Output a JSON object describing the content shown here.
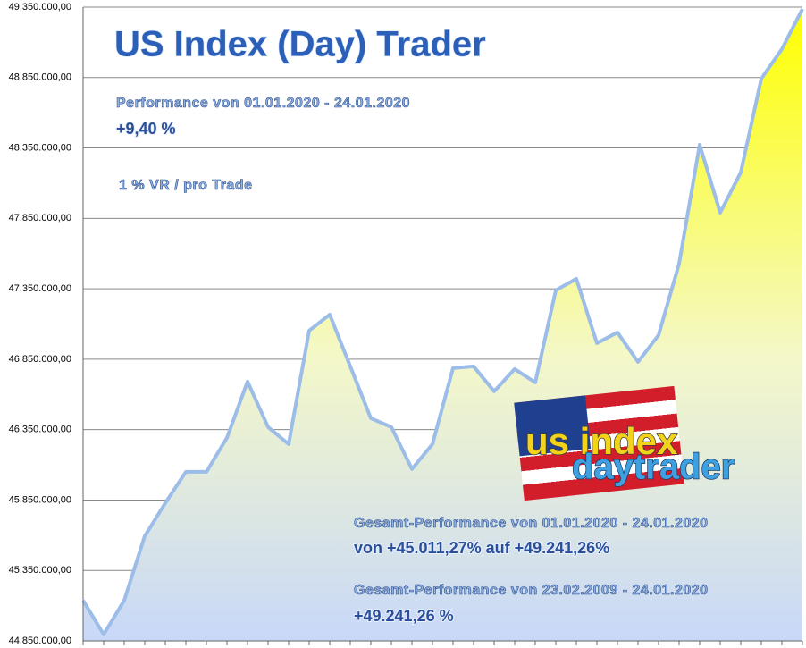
{
  "chart_data": {
    "type": "area",
    "title": "US Index (Day) Trader",
    "annotations": [
      "Performance  von  01.01.2020 - 24.01.2020",
      "+9,40 %",
      "1 % VR / pro Trade",
      "Gesamt-Performance  von  01.01.2020 - 24.01.2020",
      "von +45.011,27% auf  +49.241,26%",
      "Gesamt-Performance  von  23.02.2009 - 24.01.2020",
      "+49.241,26 %",
      "us index",
      "daytrader"
    ],
    "categories": [
      null,
      null,
      null,
      null,
      null,
      null,
      null,
      null,
      null,
      null,
      null,
      null,
      null,
      null,
      null,
      null,
      null,
      null,
      null,
      null,
      null,
      null,
      null,
      null,
      null,
      null,
      null,
      null,
      null,
      null,
      null,
      null,
      null,
      null,
      null,
      null
    ],
    "values": [
      45137000,
      44896000,
      45137000,
      45594000,
      45829000,
      46050000,
      46050000,
      46292000,
      46692000,
      46368000,
      46247000,
      47053000,
      47167000,
      46799000,
      46431000,
      46368000,
      46070000,
      46247000,
      46787000,
      46799000,
      46622000,
      46780000,
      46685000,
      47339000,
      47421000,
      46964000,
      47040000,
      46831000,
      47021000,
      47529000,
      48373000,
      47891000,
      48176000,
      48842000,
      49052000,
      49337000
    ],
    "color": "#9dbde9",
    "ylim": [
      44850000,
      49350000
    ],
    "yticks": [
      {
        "value": 44850000,
        "label": "44.850.000,00"
      },
      {
        "value": 45350000,
        "label": "45.350.000,00"
      },
      {
        "value": 45850000,
        "label": "45.850.000,00"
      },
      {
        "value": 46350000,
        "label": "46.350.000,00"
      },
      {
        "value": 46850000,
        "label": "46.850.000,00"
      },
      {
        "value": 47350000,
        "label": "47.350.000,00"
      },
      {
        "value": 47850000,
        "label": "47.850.000,00"
      },
      {
        "value": 48350000,
        "label": "48.350.000,00"
      },
      {
        "value": 48850000,
        "label": "48.850.000,00"
      },
      {
        "value": 49350000,
        "label": "49.350.000,00"
      }
    ],
    "grid": true
  }
}
